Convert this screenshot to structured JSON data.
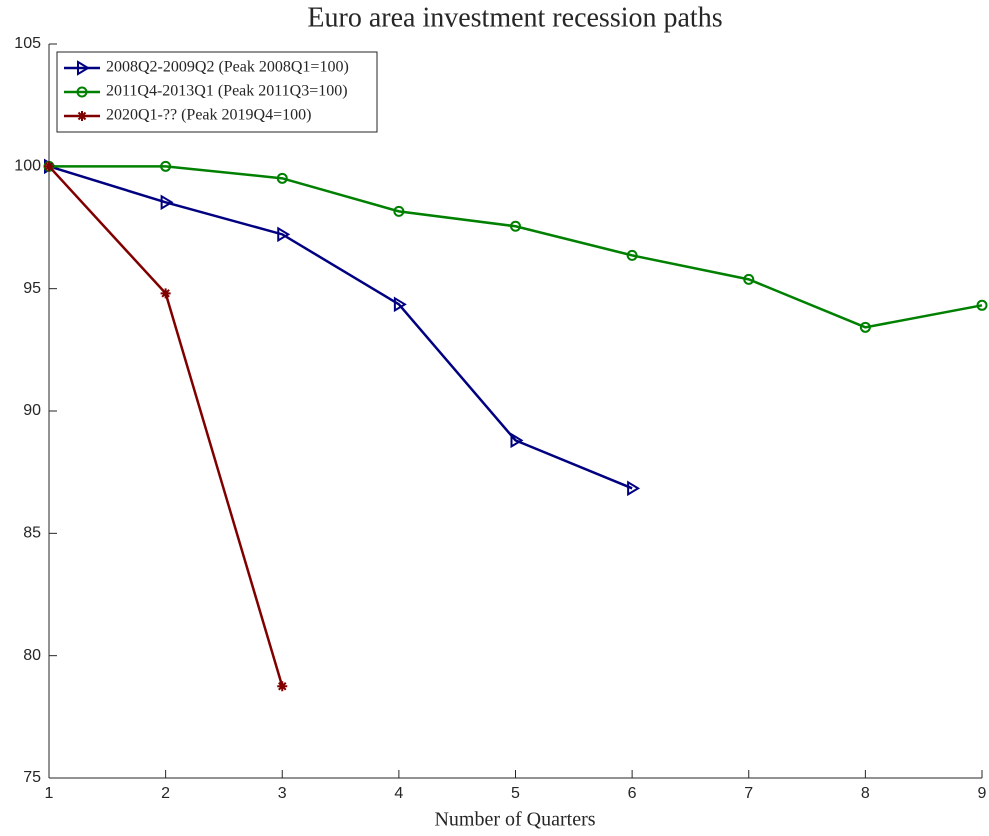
{
  "chart_data": {
    "type": "line",
    "title": "Euro area investment recession paths",
    "xlabel": "Number of Quarters",
    "xlim": [
      1,
      9
    ],
    "xticks": [
      1,
      2,
      3,
      4,
      5,
      6,
      7,
      8,
      9
    ],
    "ylim": [
      75,
      105
    ],
    "yticks": [
      75,
      80,
      85,
      90,
      95,
      100,
      105
    ],
    "legend": "upper left",
    "series": [
      {
        "name": "2008Q2-2009Q2 (Peak 2008Q1=100)",
        "color": "#000080",
        "marker": "triangle-right",
        "x": [
          1,
          2,
          3,
          4,
          5,
          6
        ],
        "values": [
          100,
          98.53,
          97.22,
          94.36,
          88.8,
          86.84
        ]
      },
      {
        "name": "2011Q4-2013Q1 (Peak 2011Q3=100)",
        "color": "#008000",
        "marker": "circle",
        "x": [
          1,
          2,
          3,
          4,
          5,
          6,
          7,
          8,
          9
        ],
        "values": [
          100,
          100,
          99.51,
          98.16,
          97.55,
          96.36,
          95.38,
          93.42,
          94.32
        ]
      },
      {
        "name": "2020Q1-?? (Peak 2019Q4=100)",
        "color": "#800000",
        "marker": "star",
        "x": [
          1,
          2,
          3
        ],
        "values": [
          100,
          94.81,
          78.75
        ]
      }
    ]
  }
}
